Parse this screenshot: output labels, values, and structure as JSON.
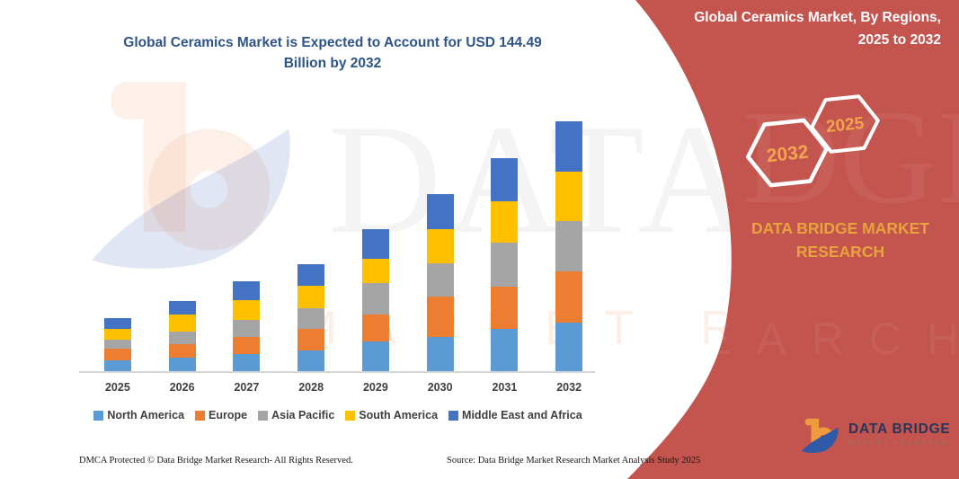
{
  "page": {
    "title_lines": [
      "Global Ceramics Market is Expected to Account for USD 144.49",
      "Billion by 2032"
    ]
  },
  "sidebar": {
    "title_lines": [
      "Global Ceramics Market, By Regions,",
      "2025 to 2032"
    ],
    "badges": [
      "2032",
      "2025"
    ],
    "brand_lines": [
      "DATA BRIDGE MARKET",
      "RESEARCH"
    ],
    "logo": {
      "name": "DATA BRIDGE",
      "subtext": "MARKET RESEARCH"
    },
    "accent_red": "#C4554E",
    "accent_orange": "#E8A33D"
  },
  "watermark": {
    "line1": "DATA BRIDGE",
    "line2": "MARKET RESEARCH",
    "ghost1": "DGE",
    "ghost2": "EARCH"
  },
  "chart_data": {
    "type": "bar",
    "stacked": true,
    "title": "Global Ceramics Market is Expected to Account for USD 144.49 Billion by 2032",
    "unit": "USD Billion",
    "categories": [
      "2025",
      "2026",
      "2027",
      "2028",
      "2029",
      "2030",
      "2031",
      "2032"
    ],
    "series": [
      {
        "name": "North America",
        "color": "#5B9BD5",
        "values": [
          6.1,
          8.0,
          9.9,
          12.1,
          17.3,
          19.9,
          24.2,
          28.0
        ]
      },
      {
        "name": "Europe",
        "color": "#ED7D31",
        "values": [
          6.9,
          7.6,
          10.0,
          12.5,
          15.6,
          23.4,
          24.8,
          29.9
        ]
      },
      {
        "name": "Asia Pacific",
        "color": "#A5A5A5",
        "values": [
          5.2,
          7.5,
          9.9,
          11.8,
          18.2,
          19.0,
          25.1,
          28.9
        ]
      },
      {
        "name": "South America",
        "color": "#FFC000",
        "values": [
          6.1,
          9.5,
          11.3,
          13.0,
          13.9,
          19.9,
          24.0,
          28.6
        ]
      },
      {
        "name": "Middle East and Africa",
        "color": "#4472C4",
        "values": [
          6.1,
          7.8,
          10.9,
          12.5,
          16.9,
          20.2,
          25.1,
          29.1
        ]
      }
    ],
    "totals": [
      30.4,
      40.4,
      52.0,
      61.9,
      81.9,
      102.4,
      123.2,
      144.49
    ],
    "x_axis": {
      "labels_visible": true
    },
    "y_axis": {
      "visible": false
    },
    "legend_position": "bottom",
    "gridlines": false
  },
  "footer": {
    "left": "DMCA Protected © Data Bridge Market Research-  All Rights Reserved.",
    "right": "Source: Data Bridge Market Research  Market Analysis Study 2025"
  }
}
